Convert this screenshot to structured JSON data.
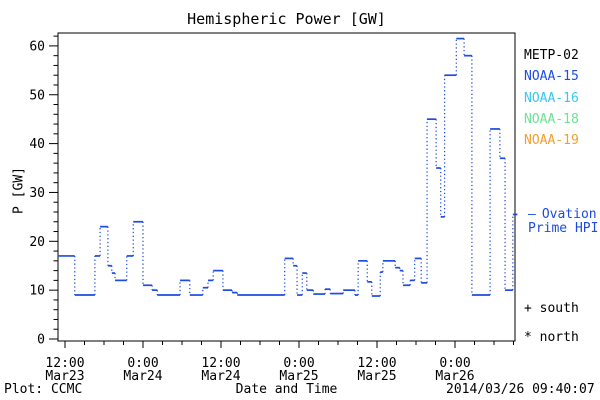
{
  "title": "Hemispheric Power [GW]",
  "axes": {
    "y": {
      "label": "P [GW]",
      "ticks": [
        0,
        10,
        20,
        30,
        40,
        50,
        60
      ],
      "minor_step": 2,
      "minor_max": 62
    },
    "x": {
      "label": "Date and Time",
      "ticks": [
        {
          "t": 12,
          "time": "12:00",
          "date": "Mar23"
        },
        {
          "t": 24,
          "time": "0:00",
          "date": "Mar24"
        },
        {
          "t": 36,
          "time": "12:00",
          "date": "Mar24"
        },
        {
          "t": 48,
          "time": "0:00",
          "date": "Mar25"
        },
        {
          "t": 60,
          "time": "12:00",
          "date": "Mar25"
        },
        {
          "t": 72,
          "time": "0:00",
          "date": "Mar26"
        }
      ],
      "minor_step_hours": 3
    }
  },
  "legend": {
    "items": [
      {
        "label": "METP-02",
        "color": "#000000"
      },
      {
        "label": "NOAA-15",
        "color": "#1e4be0"
      },
      {
        "label": "NOAA-16",
        "color": "#35c8f0"
      },
      {
        "label": "NOAA-18",
        "color": "#6ce392"
      },
      {
        "label": "NOAA-19",
        "color": "#f0a030"
      }
    ]
  },
  "ovation": {
    "key_dash": "—",
    "line1": "Ovation",
    "line2": "Prime HPI",
    "color": "#1e4be0"
  },
  "markers": {
    "south": "+ south",
    "north": "* north"
  },
  "footer": {
    "left": "Plot: CCMC",
    "datetime": "2014/03/26 09:40:07"
  },
  "chart_data": {
    "type": "line",
    "line_style": "step-post",
    "title": "Hemispheric Power [GW]",
    "xlabel": "Date and Time",
    "ylabel": "P [GW]",
    "x_unit": "hours since 2014-03-23 00:00 UT",
    "x_range_hours": [
      10.9,
      81.6
    ],
    "ylim": [
      0,
      62.7
    ],
    "grid": false,
    "legend_position": "right",
    "series": [
      {
        "name": "Ovation Prime HPI",
        "color": "#1e4be0",
        "end_t": 81.6,
        "points": [
          [
            10.9,
            17
          ],
          [
            13.5,
            9
          ],
          [
            16.6,
            17
          ],
          [
            17.4,
            23
          ],
          [
            18.6,
            15
          ],
          [
            19.2,
            13.5
          ],
          [
            19.7,
            12
          ],
          [
            21.5,
            17
          ],
          [
            22.5,
            24
          ],
          [
            24,
            11
          ],
          [
            25.4,
            10
          ],
          [
            26.2,
            9
          ],
          [
            29.7,
            12
          ],
          [
            31.2,
            9
          ],
          [
            33.2,
            10.5
          ],
          [
            34,
            12
          ],
          [
            34.8,
            14
          ],
          [
            36.3,
            10
          ],
          [
            37.7,
            9.5
          ],
          [
            38.5,
            9
          ],
          [
            45.8,
            16.5
          ],
          [
            47.1,
            15
          ],
          [
            47.7,
            9
          ],
          [
            48.5,
            13.5
          ],
          [
            49.2,
            10
          ],
          [
            50.2,
            9.2
          ],
          [
            52,
            10.2
          ],
          [
            52.8,
            9.3
          ],
          [
            54.8,
            10
          ],
          [
            56.6,
            9
          ],
          [
            57.1,
            16
          ],
          [
            58.5,
            11.7
          ],
          [
            59.2,
            8.8
          ],
          [
            60.5,
            13.7
          ],
          [
            60.9,
            16
          ],
          [
            62.8,
            14.6
          ],
          [
            63.5,
            14
          ],
          [
            64,
            11
          ],
          [
            65.1,
            12
          ],
          [
            65.8,
            16.5
          ],
          [
            66.8,
            11.5
          ],
          [
            67.7,
            45
          ],
          [
            69.1,
            35
          ],
          [
            69.8,
            25
          ],
          [
            70.4,
            54
          ],
          [
            72.2,
            61.5
          ],
          [
            73.4,
            58
          ],
          [
            74.6,
            9
          ],
          [
            77.4,
            43
          ],
          [
            78.9,
            37
          ],
          [
            79.7,
            10
          ],
          [
            80.9,
            25.5
          ]
        ]
      }
    ]
  }
}
